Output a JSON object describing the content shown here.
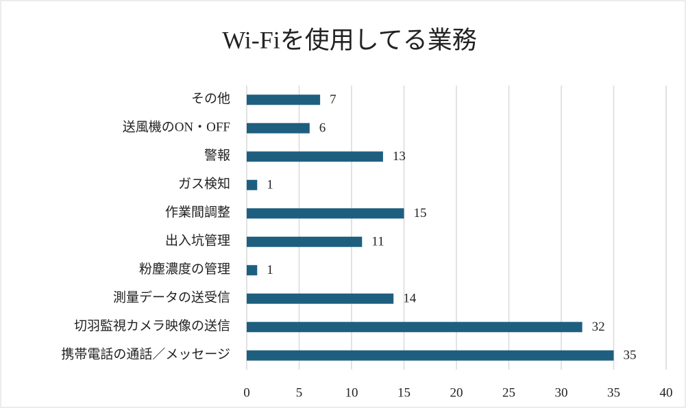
{
  "chart_data": {
    "type": "bar",
    "orientation": "horizontal",
    "title": "Wi-Fiを使用してる業務",
    "categories": [
      "その他",
      "送風機のON・OFF",
      "警報",
      "ガス検知",
      "作業間調整",
      "出入坑管理",
      "粉塵濃度の管理",
      "測量データの送受信",
      "切羽監視カメラ映像の送信",
      "携帯電話の通話／メッセージ"
    ],
    "values": [
      7,
      6,
      13,
      1,
      15,
      11,
      1,
      14,
      32,
      35
    ],
    "color": "#1e5f80",
    "xlim": [
      0,
      40
    ],
    "xticks": [
      0,
      5,
      10,
      15,
      20,
      25,
      30,
      35,
      40
    ],
    "grid": true
  }
}
